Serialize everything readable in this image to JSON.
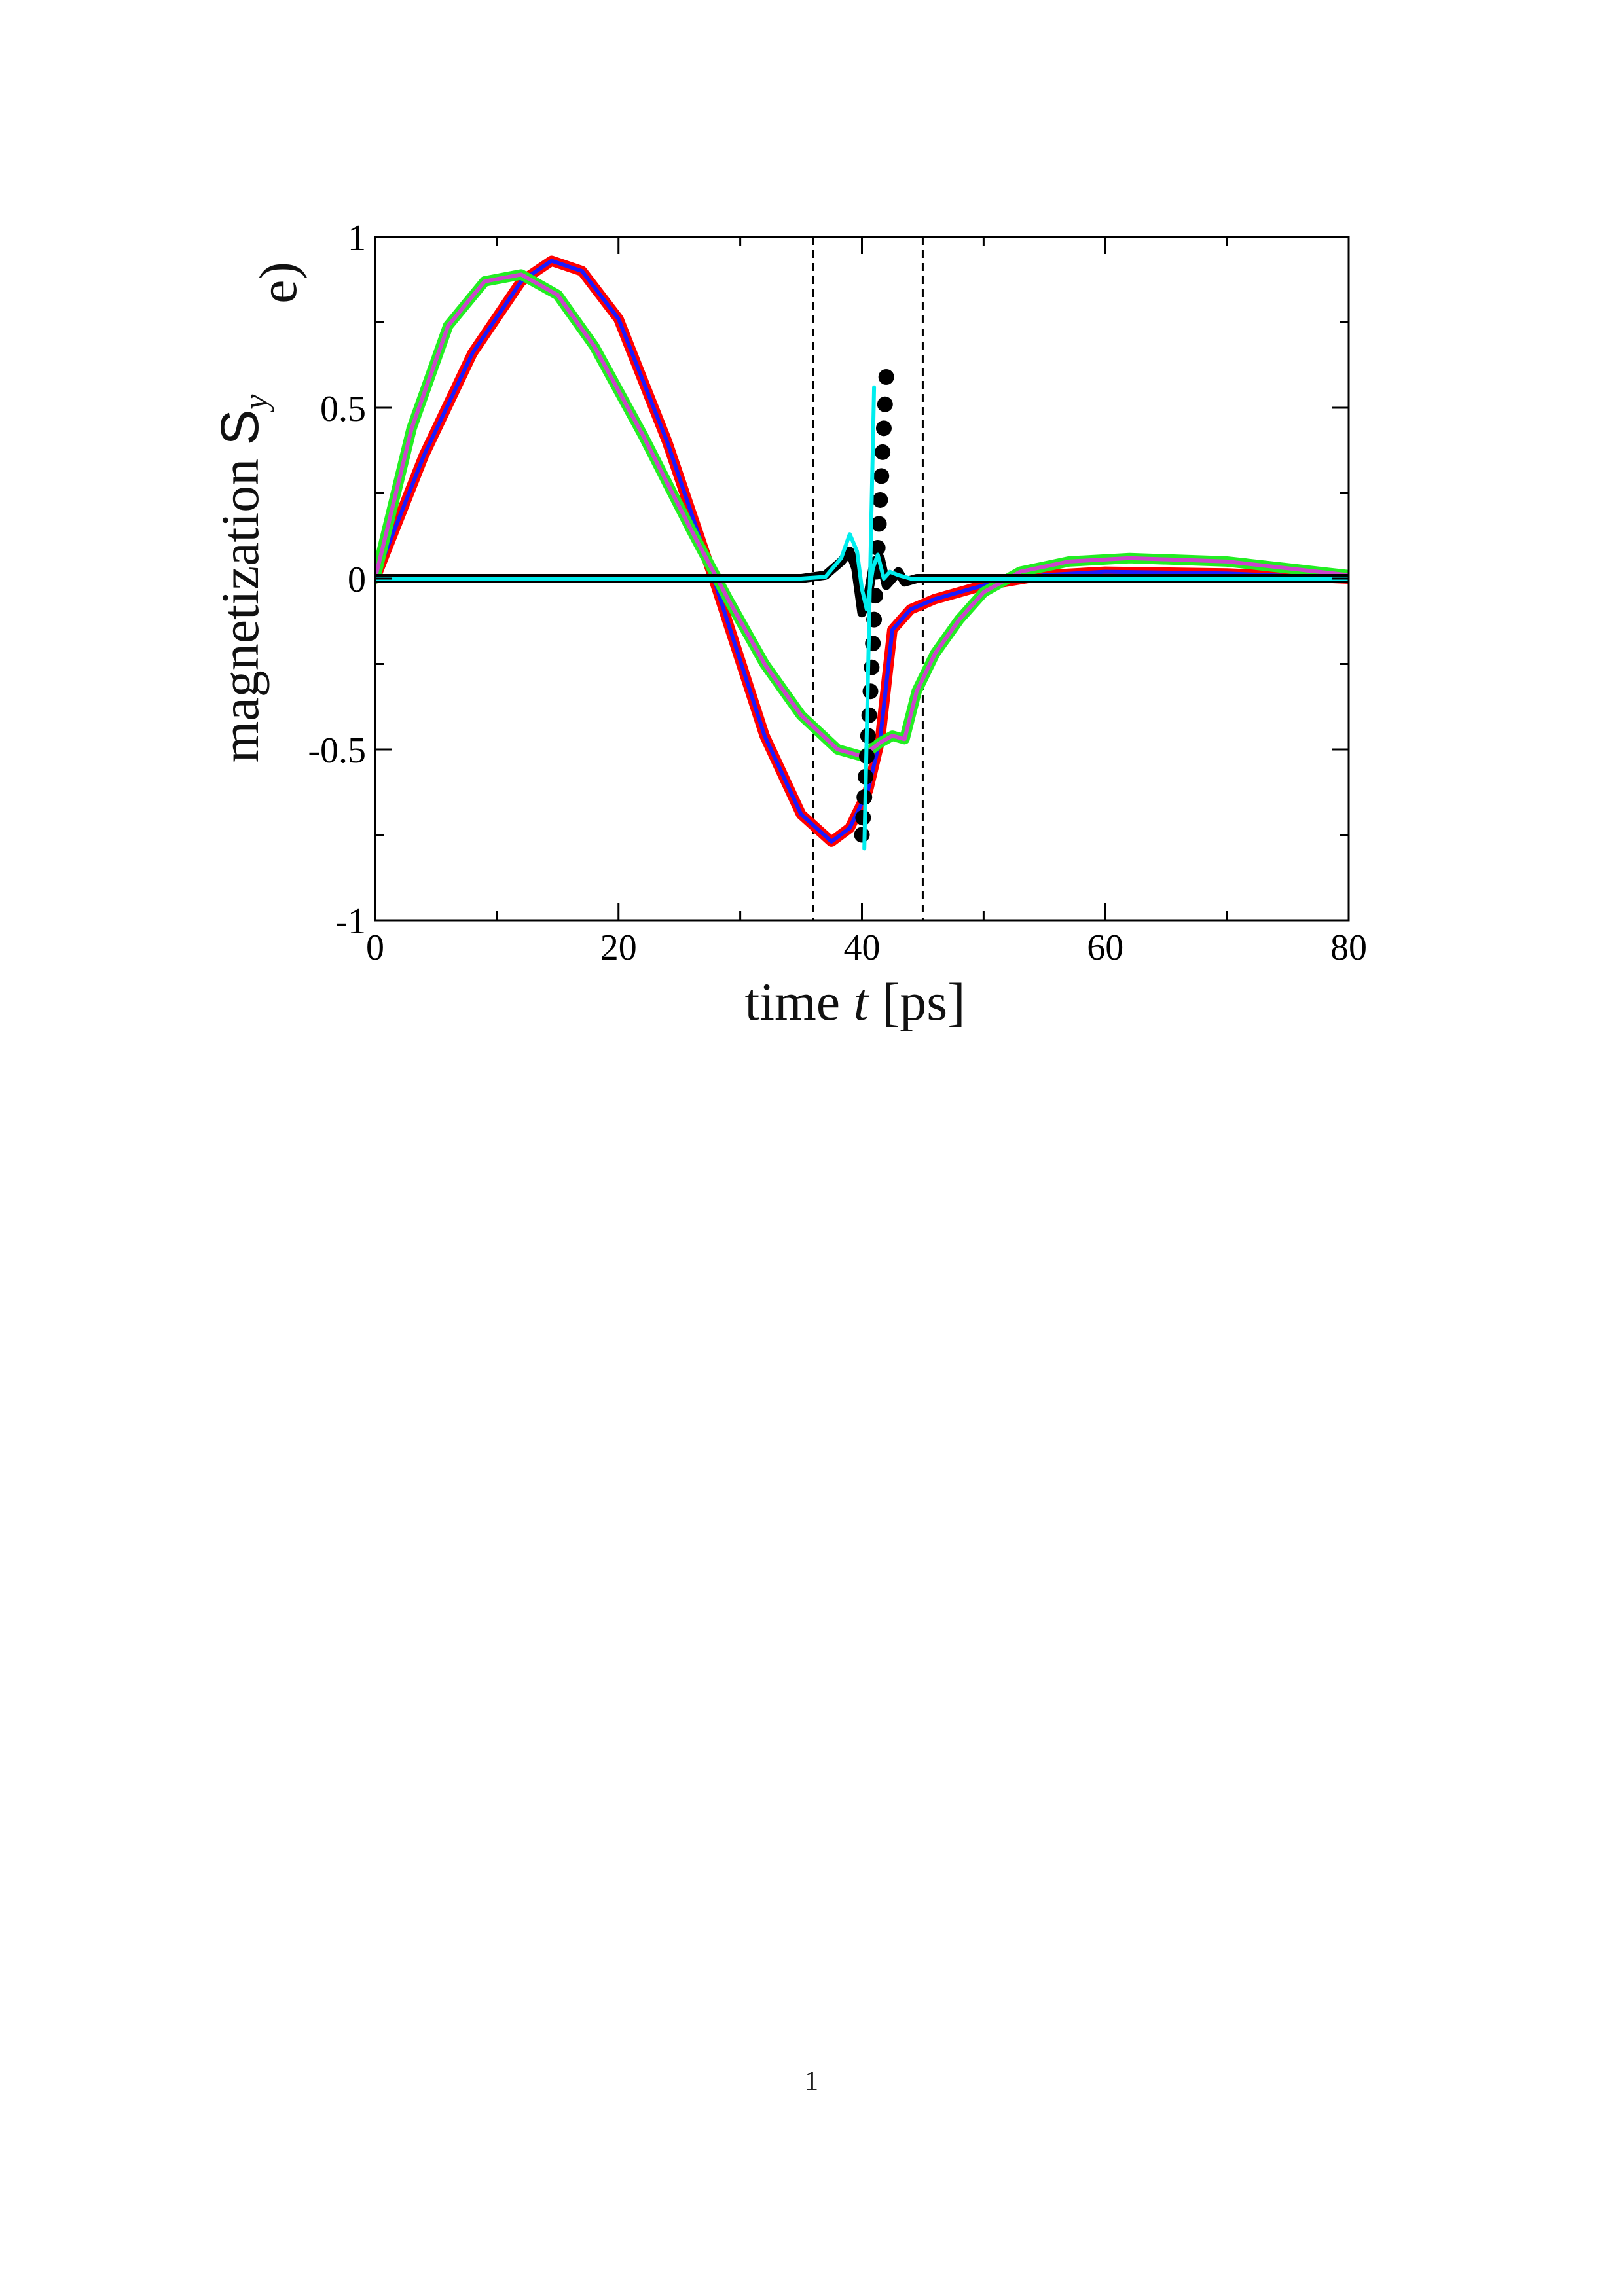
{
  "page_number": "1",
  "chart_data": {
    "type": "line",
    "panel_label": "e)",
    "xlabel": {
      "prefix": "time ",
      "var": "t",
      "suffix": " [ps]"
    },
    "ylabel": {
      "prefix": "magnetization ",
      "var": "S",
      "sub": "y"
    },
    "xlim": [
      0,
      80
    ],
    "ylim": [
      -1,
      1
    ],
    "x_ticks": [
      0,
      20,
      40,
      60,
      80
    ],
    "x_tick_labels": [
      "0",
      "20",
      "40",
      "60",
      "80"
    ],
    "y_ticks": [
      -1,
      -0.5,
      0,
      0.5,
      1
    ],
    "y_tick_labels": [
      "-1",
      "-0.5",
      "0",
      "0.5",
      "1"
    ],
    "grid": false,
    "vertical_reference_lines": [
      36,
      45
    ],
    "series": [
      {
        "color": "#ff0000",
        "width": 16,
        "style": "line",
        "points": [
          [
            0,
            0
          ],
          [
            4,
            0.36
          ],
          [
            8,
            0.66
          ],
          [
            12,
            0.87
          ],
          [
            14.5,
            0.93
          ],
          [
            17,
            0.9
          ],
          [
            20,
            0.76
          ],
          [
            24,
            0.4
          ],
          [
            28,
            -0.02
          ],
          [
            32,
            -0.46
          ],
          [
            35,
            -0.69
          ],
          [
            37.5,
            -0.77
          ],
          [
            39,
            -0.73
          ],
          [
            40.5,
            -0.62
          ],
          [
            41.5,
            -0.47
          ],
          [
            42.5,
            -0.15
          ],
          [
            44,
            -0.09
          ],
          [
            46,
            -0.06
          ],
          [
            50,
            -0.02
          ],
          [
            55,
            0.01
          ],
          [
            60,
            0.02
          ],
          [
            70,
            0.015
          ],
          [
            80,
            0
          ]
        ]
      },
      {
        "color": "#1a1aff",
        "width": 6,
        "style": "line",
        "points": [
          [
            0,
            0
          ],
          [
            4,
            0.36
          ],
          [
            8,
            0.66
          ],
          [
            12,
            0.87
          ],
          [
            14.5,
            0.93
          ],
          [
            17,
            0.9
          ],
          [
            20,
            0.76
          ],
          [
            24,
            0.4
          ],
          [
            28,
            -0.02
          ],
          [
            32,
            -0.46
          ],
          [
            35,
            -0.69
          ],
          [
            37.5,
            -0.77
          ],
          [
            39,
            -0.73
          ],
          [
            40.5,
            -0.62
          ],
          [
            41.5,
            -0.47
          ],
          [
            42.5,
            -0.15
          ],
          [
            44,
            -0.09
          ],
          [
            46,
            -0.06
          ],
          [
            50,
            -0.02
          ],
          [
            55,
            0.01
          ],
          [
            60,
            0.02
          ],
          [
            70,
            0.015
          ],
          [
            80,
            0
          ]
        ]
      },
      {
        "color": "#22ee22",
        "width": 16,
        "style": "line",
        "points": [
          [
            0,
            0
          ],
          [
            3,
            0.44
          ],
          [
            6,
            0.74
          ],
          [
            9,
            0.87
          ],
          [
            12,
            0.89
          ],
          [
            15,
            0.83
          ],
          [
            18,
            0.68
          ],
          [
            22,
            0.42
          ],
          [
            26,
            0.14
          ],
          [
            29,
            -0.06
          ],
          [
            32,
            -0.25
          ],
          [
            35,
            -0.4
          ],
          [
            38,
            -0.5
          ],
          [
            40,
            -0.52
          ],
          [
            41.5,
            -0.48
          ],
          [
            42.5,
            -0.46
          ],
          [
            43.5,
            -0.47
          ],
          [
            44.5,
            -0.33
          ],
          [
            46,
            -0.22
          ],
          [
            48,
            -0.12
          ],
          [
            50,
            -0.04
          ],
          [
            53,
            0.02
          ],
          [
            57,
            0.05
          ],
          [
            62,
            0.06
          ],
          [
            70,
            0.05
          ],
          [
            80,
            0.01
          ]
        ]
      },
      {
        "color": "#cc44cc",
        "width": 6,
        "style": "line",
        "points": [
          [
            0,
            0
          ],
          [
            3,
            0.44
          ],
          [
            6,
            0.74
          ],
          [
            9,
            0.87
          ],
          [
            12,
            0.89
          ],
          [
            15,
            0.83
          ],
          [
            18,
            0.68
          ],
          [
            22,
            0.42
          ],
          [
            26,
            0.14
          ],
          [
            29,
            -0.06
          ],
          [
            32,
            -0.25
          ],
          [
            35,
            -0.4
          ],
          [
            38,
            -0.5
          ],
          [
            40,
            -0.52
          ],
          [
            41.5,
            -0.48
          ],
          [
            42.5,
            -0.46
          ],
          [
            43.5,
            -0.47
          ],
          [
            44.5,
            -0.33
          ],
          [
            46,
            -0.22
          ],
          [
            48,
            -0.12
          ],
          [
            50,
            -0.04
          ],
          [
            53,
            0.02
          ],
          [
            57,
            0.05
          ],
          [
            62,
            0.06
          ],
          [
            70,
            0.05
          ],
          [
            80,
            0.01
          ]
        ]
      },
      {
        "color": "#000000",
        "width": 14,
        "style": "line",
        "points": [
          [
            0,
            0
          ],
          [
            35,
            0
          ],
          [
            37,
            0.01
          ],
          [
            38.3,
            0.05
          ],
          [
            39,
            0.08
          ],
          [
            39.5,
            0.03
          ],
          [
            40,
            -0.1
          ],
          [
            40.5,
            -0.05
          ],
          [
            41,
            0.05
          ],
          [
            41.5,
            0.06
          ],
          [
            42,
            -0.02
          ],
          [
            42.5,
            0.0
          ],
          [
            43,
            0.02
          ],
          [
            43.5,
            -0.01
          ],
          [
            44.5,
            0.0
          ],
          [
            80,
            0
          ]
        ]
      },
      {
        "color": "#000000",
        "width": 0,
        "style": "markers",
        "points": [
          [
            40,
            -0.75
          ],
          [
            40.1,
            -0.7
          ],
          [
            40.2,
            -0.64
          ],
          [
            40.3,
            -0.58
          ],
          [
            40.4,
            -0.52
          ],
          [
            40.5,
            -0.46
          ],
          [
            40.6,
            -0.4
          ],
          [
            40.7,
            -0.33
          ],
          [
            40.8,
            -0.26
          ],
          [
            40.9,
            -0.19
          ],
          [
            41.0,
            -0.12
          ],
          [
            41.1,
            -0.05
          ],
          [
            41.2,
            0.02
          ],
          [
            41.3,
            0.09
          ],
          [
            41.4,
            0.16
          ],
          [
            41.5,
            0.23
          ],
          [
            41.6,
            0.3
          ],
          [
            41.7,
            0.37
          ],
          [
            41.8,
            0.44
          ],
          [
            41.9,
            0.51
          ],
          [
            42,
            0.59
          ]
        ]
      },
      {
        "color": "#00eeee",
        "width": 6,
        "style": "line",
        "points": [
          [
            0,
            0
          ],
          [
            35,
            0
          ],
          [
            37,
            0.005
          ],
          [
            38.3,
            0.06
          ],
          [
            39,
            0.13
          ],
          [
            39.6,
            0.08
          ],
          [
            40,
            -0.03
          ],
          [
            40.4,
            -0.09
          ],
          [
            40.9,
            0.03
          ],
          [
            41.3,
            0.07
          ],
          [
            41.8,
            0.0
          ],
          [
            42.3,
            0.02
          ],
          [
            43,
            0.01
          ],
          [
            44,
            0.0
          ],
          [
            80,
            0
          ]
        ]
      },
      {
        "color": "#00eeee",
        "width": 6,
        "style": "line",
        "points": [
          [
            40.2,
            -0.79
          ],
          [
            41,
            0.56
          ]
        ]
      }
    ]
  }
}
